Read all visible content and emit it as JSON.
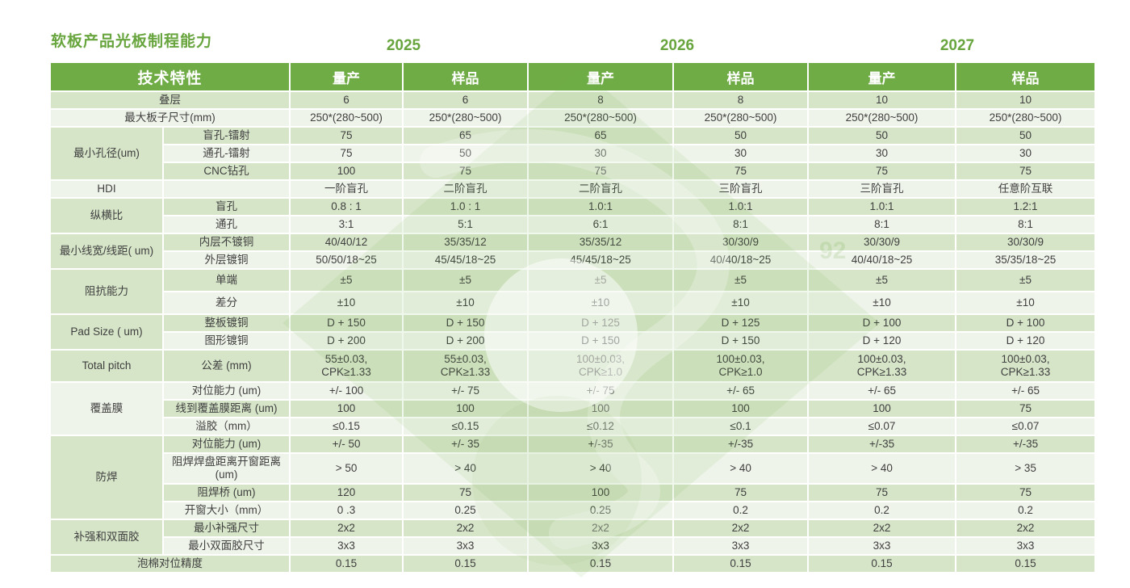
{
  "page": {
    "title": "软板产品光板制程能力",
    "years": [
      "2025",
      "2026",
      "2027"
    ]
  },
  "colors": {
    "header_green": "#6fac46",
    "title_green": "#68a53e",
    "row_dark": "#d6e5c8",
    "row_light": "#eff4ea",
    "text": "#3f3f3f",
    "watermark_green": "#70ad47"
  },
  "watermark": {
    "faint_text": "92"
  },
  "table": {
    "header": {
      "feature_label": "技术特性",
      "col_labels": [
        "量产",
        "样品",
        "量产",
        "样品",
        "量产",
        "样品"
      ]
    },
    "rows": [
      {
        "kind": "full",
        "label": "叠层",
        "values": [
          "6",
          "6",
          "8",
          "8",
          "10",
          "10"
        ]
      },
      {
        "kind": "full",
        "label": "最大板子尺寸(mm)",
        "values": [
          "250*(280~500)",
          "250*(280~500)",
          "250*(280~500)",
          "250*(280~500)",
          "250*(280~500)",
          "250*(280~500)"
        ]
      },
      {
        "kind": "group",
        "group": "最小孔径(um)",
        "rowspan": 3,
        "label": "盲孔-镭射",
        "values": [
          "75",
          "65",
          "65",
          "50",
          "50",
          "50"
        ]
      },
      {
        "kind": "sub",
        "label": "通孔-镭射",
        "values": [
          "75",
          "50",
          "30",
          "30",
          "30",
          "30"
        ]
      },
      {
        "kind": "sub",
        "label": "CNC钻孔",
        "values": [
          "100",
          "75",
          "75",
          "75",
          "75",
          "75"
        ]
      },
      {
        "kind": "group",
        "group": "HDI",
        "rowspan": 1,
        "label": "",
        "values": [
          "一阶盲孔",
          "二阶盲孔",
          "二阶盲孔",
          "三阶盲孔",
          "三阶盲孔",
          "任意阶互联"
        ]
      },
      {
        "kind": "group",
        "group": "纵横比",
        "rowspan": 2,
        "label": "盲孔",
        "values": [
          "0.8 : 1",
          "1.0 : 1",
          "1.0:1",
          "1.0:1",
          "1.0:1",
          "1.2:1"
        ]
      },
      {
        "kind": "sub",
        "label": "通孔",
        "values": [
          "3:1",
          "5:1",
          "6:1",
          "8:1",
          "8:1",
          "8:1"
        ]
      },
      {
        "kind": "group",
        "group": "最小线宽/线距( um)",
        "rowspan": 2,
        "label": "内层不镀铜",
        "values": [
          "40/40/12",
          "35/35/12",
          "35/35/12",
          "30/30/9",
          "30/30/9",
          "30/30/9"
        ]
      },
      {
        "kind": "sub",
        "label": "外层镀铜",
        "values": [
          "50/50/18~25",
          "45/45/18~25",
          "45/45/18~25",
          "40/40/18~25",
          "40/40/18~25",
          "35/35/18~25"
        ]
      },
      {
        "kind": "group",
        "group": "阻抗能力",
        "rowspan": 2,
        "label": "单端",
        "values": [
          "±5",
          "±5",
          "±5",
          "±5",
          "±5",
          "±5"
        ],
        "height": "mid"
      },
      {
        "kind": "sub",
        "label": "差分",
        "values": [
          "±10",
          "±10",
          "±10",
          "±10",
          "±10",
          "±10"
        ],
        "height": "mid"
      },
      {
        "kind": "group",
        "group": "Pad Size ( um)",
        "rowspan": 2,
        "label": "整板镀铜",
        "values": [
          "D + 150",
          "D + 150",
          "D + 125",
          "D + 125",
          "D + 100",
          "D + 100"
        ]
      },
      {
        "kind": "sub",
        "label": "图形镀铜",
        "values": [
          "D + 200",
          "D + 200",
          "D + 150",
          "D + 150",
          "D + 120",
          "D + 120"
        ]
      },
      {
        "kind": "group",
        "group": "Total pitch",
        "rowspan": 1,
        "label": "公差 (mm)",
        "values": [
          "55±0.03,\nCPK≥1.33",
          "55±0.03,\nCPK≥1.33",
          "100±0.03,\nCPK≥1.0",
          "100±0.03,\nCPK≥1.0",
          "100±0.03,\nCPK≥1.33",
          "100±0.03,\nCPK≥1.33"
        ],
        "height": "tall"
      },
      {
        "kind": "group",
        "group": "覆盖膜",
        "rowspan": 3,
        "label": "对位能力 (um)",
        "values": [
          "+/- 100",
          "+/- 75",
          "+/- 75",
          "+/- 65",
          "+/- 65",
          "+/- 65"
        ]
      },
      {
        "kind": "sub",
        "label": "线到覆盖膜距离 (um)",
        "values": [
          "100",
          "100",
          "100",
          "100",
          "100",
          "75"
        ]
      },
      {
        "kind": "sub",
        "label": "溢胶（mm）",
        "values": [
          "≤0.15",
          "≤0.15",
          "≤0.12",
          "≤0.1",
          "≤0.07",
          "≤0.07"
        ]
      },
      {
        "kind": "group",
        "group": "防焊",
        "rowspan": 4,
        "label": "对位能力 (um)",
        "values": [
          "+/- 50",
          "+/- 35",
          "+/-35",
          "+/-35",
          "+/-35",
          "+/-35"
        ]
      },
      {
        "kind": "sub",
        "label": "阻焊焊盘距离开窗距离 (um)",
        "values": [
          "> 50",
          "> 40",
          "> 40",
          "> 40",
          "> 40",
          "> 35"
        ],
        "height": "xtall"
      },
      {
        "kind": "sub",
        "label": "阻焊桥 (um)",
        "values": [
          "120",
          "75",
          "100",
          "75",
          "75",
          "75"
        ]
      },
      {
        "kind": "sub",
        "label": "开窗大小（mm）",
        "values": [
          "0 .3",
          "0.25",
          "0.25",
          "0.2",
          "0.2",
          "0.2"
        ]
      },
      {
        "kind": "group",
        "group": "补强和双面胶",
        "rowspan": 2,
        "label": "最小补强尺寸",
        "values": [
          "2x2",
          "2x2",
          "2x2",
          "2x2",
          "2x2",
          "2x2"
        ]
      },
      {
        "kind": "sub",
        "label": "最小双面胶尺寸",
        "values": [
          "3x3",
          "3x3",
          "3x3",
          "3x3",
          "3x3",
          "3x3"
        ]
      },
      {
        "kind": "full",
        "label": "泡棉对位精度",
        "values": [
          "0.15",
          "0.15",
          "0.15",
          "0.15",
          "0.15",
          "0.15"
        ]
      }
    ]
  }
}
